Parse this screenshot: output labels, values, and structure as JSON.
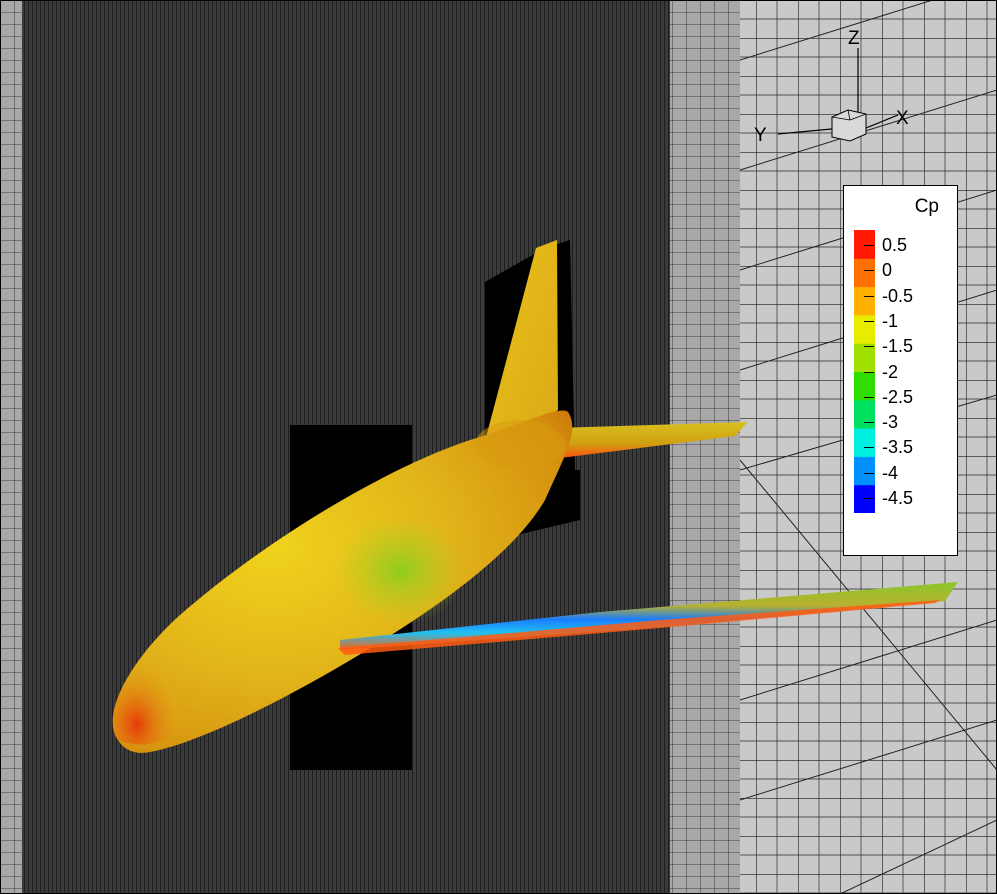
{
  "axes": {
    "x_label": "X",
    "y_label": "Y",
    "z_label": "Z"
  },
  "legend": {
    "title": "Cp",
    "range": [
      -4.8,
      0.8
    ],
    "levels": [
      "0.5",
      "0",
      "-0.5",
      "-1",
      "-1.5",
      "-2",
      "-2.5",
      "-3",
      "-3.5",
      "-4",
      "-4.5"
    ],
    "colors": [
      "#0000ff",
      "#0090ff",
      "#00f0e0",
      "#00e060",
      "#30dd00",
      "#a0e000",
      "#e8ec00",
      "#ffb000",
      "#ff7000",
      "#ff1a00"
    ]
  },
  "colors": {
    "dense_mesh": "#2b2b2b",
    "coarse_mesh": "#c8c8c8",
    "fuselage": "#e2b21a",
    "wing_low_pressure": "#1f7cff",
    "shadow": "#000000"
  }
}
